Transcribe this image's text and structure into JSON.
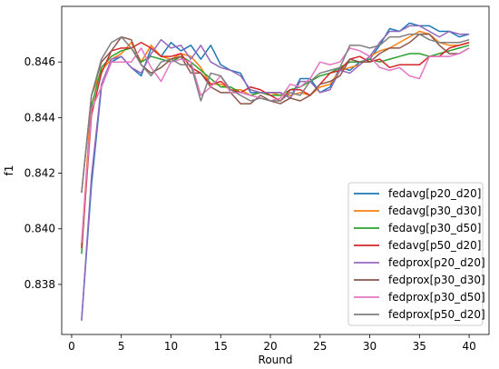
{
  "chart_data": {
    "type": "line",
    "title": "",
    "xlabel": "Round",
    "ylabel": "f1",
    "xlim": [
      -1,
      42
    ],
    "ylim": [
      0.8362,
      0.848
    ],
    "x_ticks": [
      0,
      5,
      10,
      15,
      20,
      25,
      30,
      35,
      40
    ],
    "y_ticks": [
      0.838,
      0.84,
      0.842,
      0.844,
      0.846
    ],
    "y_tick_labels": [
      "0.838",
      "0.840",
      "0.842",
      "0.844",
      "0.846"
    ],
    "grid": false,
    "legend_position": "lower-right",
    "x": [
      1,
      2,
      3,
      4,
      5,
      6,
      7,
      8,
      9,
      10,
      11,
      12,
      13,
      14,
      15,
      16,
      17,
      18,
      19,
      20,
      21,
      22,
      23,
      24,
      25,
      26,
      27,
      28,
      29,
      30,
      31,
      32,
      33,
      34,
      35,
      36,
      37,
      38,
      39,
      40
    ],
    "series": [
      {
        "name": "fedavg[p20_d20]",
        "color": "#1f77b4",
        "values": [
          0.8367,
          0.8416,
          0.8451,
          0.846,
          0.8462,
          0.8458,
          0.8455,
          0.8465,
          0.8462,
          0.8467,
          0.8464,
          0.8466,
          0.8461,
          0.8466,
          0.8459,
          0.8457,
          0.8456,
          0.8449,
          0.8449,
          0.8449,
          0.8449,
          0.8447,
          0.8454,
          0.8454,
          0.8449,
          0.8451,
          0.8458,
          0.8457,
          0.846,
          0.8461,
          0.8466,
          0.8472,
          0.8471,
          0.8474,
          0.8473,
          0.8473,
          0.8471,
          0.8471,
          0.8469,
          0.847
        ]
      },
      {
        "name": "fedavg[p30_d30]",
        "color": "#ff7f0e",
        "values": [
          0.8394,
          0.8448,
          0.8457,
          0.8461,
          0.8463,
          0.8467,
          0.846,
          0.8466,
          0.8462,
          0.8461,
          0.8463,
          0.8462,
          0.8458,
          0.8452,
          0.8452,
          0.845,
          0.845,
          0.8448,
          0.8449,
          0.8449,
          0.8448,
          0.8448,
          0.8449,
          0.8448,
          0.8451,
          0.8452,
          0.8457,
          0.8458,
          0.8459,
          0.8462,
          0.8464,
          0.8465,
          0.8467,
          0.8469,
          0.8471,
          0.847,
          0.8467,
          0.8466,
          0.8466,
          0.8467
        ]
      },
      {
        "name": "fedavg[p30_d50]",
        "color": "#2ca02c",
        "values": [
          0.8391,
          0.8444,
          0.8458,
          0.8462,
          0.8464,
          0.8465,
          0.846,
          0.8462,
          0.8461,
          0.846,
          0.8462,
          0.846,
          0.8457,
          0.8454,
          0.8451,
          0.8451,
          0.8449,
          0.8448,
          0.8449,
          0.8448,
          0.8448,
          0.845,
          0.8451,
          0.8453,
          0.8455,
          0.8456,
          0.8458,
          0.846,
          0.846,
          0.8461,
          0.846,
          0.8461,
          0.8462,
          0.8463,
          0.8463,
          0.8462,
          0.8463,
          0.8464,
          0.8465,
          0.8466
        ]
      },
      {
        "name": "fedavg[p50_d20]",
        "color": "#d62728",
        "values": [
          0.8393,
          0.8441,
          0.8456,
          0.8464,
          0.8465,
          0.8465,
          0.8467,
          0.8465,
          0.8462,
          0.8462,
          0.8463,
          0.8458,
          0.8456,
          0.8452,
          0.8453,
          0.845,
          0.8449,
          0.8451,
          0.845,
          0.8448,
          0.8446,
          0.845,
          0.845,
          0.8448,
          0.8452,
          0.8456,
          0.8457,
          0.8461,
          0.8462,
          0.846,
          0.8461,
          0.8458,
          0.8459,
          0.8459,
          0.8459,
          0.8462,
          0.8462,
          0.8465,
          0.8466,
          0.8467
        ]
      },
      {
        "name": "fedprox[p20_d20]",
        "color": "#9467bd",
        "values": [
          0.8367,
          0.8419,
          0.8452,
          0.8461,
          0.8462,
          0.8458,
          0.8456,
          0.8463,
          0.8468,
          0.8465,
          0.8466,
          0.8461,
          0.8466,
          0.846,
          0.8458,
          0.8457,
          0.8455,
          0.845,
          0.8449,
          0.8449,
          0.8449,
          0.8447,
          0.8453,
          0.8453,
          0.8449,
          0.845,
          0.8457,
          0.8456,
          0.8459,
          0.8462,
          0.8467,
          0.8471,
          0.8471,
          0.8473,
          0.8473,
          0.8471,
          0.8469,
          0.8471,
          0.847,
          0.847
        ]
      },
      {
        "name": "fedprox[p30_d30]",
        "color": "#8c564b",
        "values": [
          0.8413,
          0.8448,
          0.846,
          0.8464,
          0.8469,
          0.8468,
          0.8459,
          0.8456,
          0.8458,
          0.8461,
          0.8462,
          0.8456,
          0.8456,
          0.8451,
          0.8449,
          0.8449,
          0.8445,
          0.8445,
          0.8448,
          0.8446,
          0.8445,
          0.8447,
          0.8446,
          0.8448,
          0.8452,
          0.8453,
          0.8455,
          0.8461,
          0.846,
          0.846,
          0.8463,
          0.8465,
          0.8465,
          0.8467,
          0.847,
          0.847,
          0.8466,
          0.8463,
          0.8463,
          0.8465
        ]
      },
      {
        "name": "fedprox[p30_d50]",
        "color": "#e377c2",
        "values": [
          0.8395,
          0.8443,
          0.8451,
          0.846,
          0.846,
          0.846,
          0.8465,
          0.8458,
          0.8453,
          0.846,
          0.8461,
          0.846,
          0.8448,
          0.8451,
          0.8455,
          0.8449,
          0.8449,
          0.8448,
          0.8447,
          0.8446,
          0.8447,
          0.8452,
          0.8451,
          0.8454,
          0.846,
          0.8459,
          0.846,
          0.8465,
          0.8464,
          0.8462,
          0.8458,
          0.8457,
          0.8458,
          0.8455,
          0.8454,
          0.8462,
          0.8462,
          0.8462,
          0.8463,
          0.8465
        ]
      },
      {
        "name": "fedprox[p50_d20]",
        "color": "#7f7f7f",
        "values": [
          0.8413,
          0.8448,
          0.8461,
          0.8467,
          0.8469,
          0.8465,
          0.8459,
          0.8455,
          0.846,
          0.8461,
          0.8459,
          0.8459,
          0.8446,
          0.8456,
          0.8455,
          0.845,
          0.8448,
          0.8446,
          0.8447,
          0.8446,
          0.8446,
          0.8449,
          0.8448,
          0.8453,
          0.8456,
          0.8457,
          0.8458,
          0.8466,
          0.8466,
          0.8465,
          0.8466,
          0.8469,
          0.8469,
          0.847,
          0.847,
          0.8468,
          0.8467,
          0.8467,
          0.8467,
          0.8468
        ]
      }
    ]
  }
}
